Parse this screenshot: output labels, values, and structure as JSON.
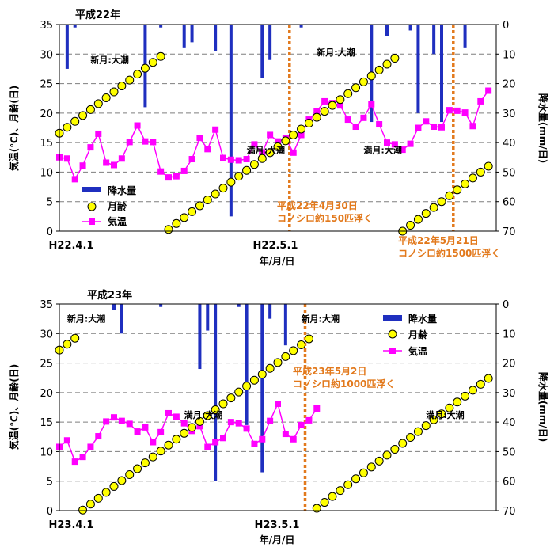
{
  "charts": [
    {
      "title": "平成22年",
      "x_start_label": "H22.4.1",
      "x_mid_label": "H22.5.1",
      "xlabel": "年/月/日",
      "ylabel_left": "気温(℃)、月齢(日)",
      "ylabel_right": "降水量(mm/日)",
      "legend": {
        "rain": "降水量",
        "moon": "月齢",
        "temp": "気温"
      },
      "annotations": [
        {
          "text": "新月:大潮",
          "day": 4,
          "value": 28.5
        },
        {
          "text": "新月:大潮",
          "day": 33,
          "value": 29.8
        },
        {
          "text": "満月:大潮",
          "day": 24,
          "value": 13.2
        },
        {
          "text": "満月:大潮",
          "day": 39,
          "value": 13.2
        }
      ],
      "events": [
        {
          "label1": "平成22年4月30日",
          "label2": "コノシロ約150匹浮く"
        },
        {
          "label1": "平成22年5月21日",
          "label2": "コノシロ約1500匹浮く"
        }
      ]
    },
    {
      "title": "平成23年",
      "x_start_label": "H23.4.1",
      "x_mid_label": "H23.5.1",
      "xlabel": "年/月/日",
      "ylabel_left": "気温(℃)、月齢(日)",
      "ylabel_right": "降水量(mm/日)",
      "legend": {
        "rain": "降水量",
        "moon": "月齢",
        "temp": "気温"
      },
      "annotations": [
        {
          "text": "新月:大潮",
          "day": 1,
          "value": 32.0
        },
        {
          "text": "新月:大潮",
          "day": 31,
          "value": 32.0
        },
        {
          "text": "満月:大潮",
          "day": 16,
          "value": 15.7
        },
        {
          "text": "満月:大潮",
          "day": 47,
          "value": 15.7
        }
      ],
      "events": [
        {
          "label1": "平成23年5月2日",
          "label2": "コノシロ約1000匹浮く"
        }
      ]
    }
  ],
  "chart_data": [
    {
      "type": "line",
      "title": "平成22年",
      "x_unit": "day",
      "x_start": "2010-04-01",
      "xlim": [
        0,
        56
      ],
      "ylim_left": [
        0,
        35
      ],
      "ylim_right": [
        0,
        70
      ],
      "yticks_left": [
        0,
        5,
        10,
        15,
        20,
        25,
        30,
        35
      ],
      "yticks_right": [
        0,
        10,
        20,
        30,
        40,
        50,
        60,
        70
      ],
      "grid": true,
      "legend_position": "bottom-left",
      "series": [
        {
          "name": "気温",
          "kind": "line",
          "axis": "left",
          "color": "#ff00ff",
          "x": [
            0,
            1,
            2,
            3,
            4,
            5,
            6,
            7,
            8,
            9,
            10,
            11,
            12,
            13,
            14,
            15,
            16,
            17,
            18,
            19,
            20,
            21,
            22,
            23,
            24,
            25,
            26,
            27,
            28,
            29,
            30,
            31,
            32,
            33,
            34,
            35,
            36,
            37,
            38,
            39,
            40,
            41,
            42,
            43,
            44,
            45,
            46,
            47,
            48,
            49,
            50,
            51,
            52,
            53,
            54,
            55
          ],
          "values": [
            12.5,
            12.3,
            8.8,
            11.1,
            14.2,
            16.5,
            11.6,
            11.2,
            12.3,
            15.1,
            17.9,
            15.2,
            15.1,
            10.1,
            9.1,
            9.3,
            10.2,
            12.2,
            15.8,
            13.9,
            17.2,
            12.4,
            12.1,
            12.0,
            12.2,
            14.7,
            13.3,
            16.3,
            15.2,
            15.7,
            13.3,
            16.3,
            18.9,
            20.3,
            22.0,
            21.7,
            21.3,
            18.9,
            17.7,
            19.2,
            21.5,
            18.1,
            15.0,
            14.7,
            13.8,
            14.8,
            17.5,
            18.6,
            17.7,
            17.6,
            20.5,
            20.4,
            20.1,
            17.8,
            22.0,
            23.8
          ]
        },
        {
          "name": "月齢",
          "kind": "scatter",
          "axis": "left",
          "color": "#ffff00",
          "x": [
            0,
            1,
            2,
            3,
            4,
            5,
            6,
            7,
            8,
            9,
            10,
            11,
            12,
            13,
            14,
            15,
            16,
            17,
            18,
            19,
            20,
            21,
            22,
            23,
            24,
            25,
            26,
            27,
            28,
            29,
            30,
            31,
            32,
            33,
            34,
            35,
            36,
            37,
            38,
            39,
            40,
            41,
            42,
            43,
            44,
            45,
            46,
            47,
            48,
            49,
            50,
            51,
            52,
            53,
            54,
            55
          ],
          "values": [
            16.6,
            17.6,
            18.6,
            19.6,
            20.6,
            21.6,
            22.6,
            23.6,
            24.6,
            25.6,
            26.6,
            27.6,
            28.6,
            29.6,
            0.3,
            1.3,
            2.3,
            3.3,
            4.3,
            5.3,
            6.3,
            7.3,
            8.3,
            9.3,
            10.3,
            11.3,
            12.3,
            13.3,
            14.3,
            15.3,
            16.3,
            17.3,
            18.3,
            19.3,
            20.3,
            21.3,
            22.3,
            23.3,
            24.3,
            25.3,
            26.3,
            27.3,
            28.3,
            29.3,
            0.0,
            1.0,
            2.0,
            3.0,
            4.0,
            5.0,
            6.0,
            7.0,
            8.0,
            9.0,
            10.0,
            11.0
          ]
        },
        {
          "name": "降水量",
          "kind": "bar",
          "axis": "right",
          "color": "#1f2fbf",
          "x": [
            1,
            2,
            11,
            13,
            16,
            17,
            20,
            22,
            26,
            27,
            31,
            40,
            42,
            45,
            46,
            48,
            49,
            52
          ],
          "values": [
            15,
            1,
            28,
            1,
            8,
            6,
            9,
            65,
            18,
            12,
            1,
            33,
            4,
            2,
            30,
            10,
            33,
            8
          ]
        }
      ],
      "event_days": [
        29.5,
        50.5
      ]
    },
    {
      "type": "line",
      "title": "平成23年",
      "x_unit": "day",
      "x_start": "2011-04-01",
      "xlim": [
        0,
        56
      ],
      "ylim_left": [
        0,
        35
      ],
      "ylim_right": [
        0,
        70
      ],
      "yticks_left": [
        0,
        5,
        10,
        15,
        20,
        25,
        30,
        35
      ],
      "yticks_right": [
        0,
        10,
        20,
        30,
        40,
        50,
        60,
        70
      ],
      "grid": true,
      "legend_position": "top-right",
      "series": [
        {
          "name": "気温",
          "kind": "line",
          "axis": "left",
          "color": "#ff00ff",
          "x": [
            0,
            1,
            2,
            3,
            4,
            5,
            6,
            7,
            8,
            9,
            10,
            11,
            12,
            13,
            14,
            15,
            16,
            17,
            18,
            19,
            20,
            21,
            22,
            23,
            24,
            25,
            26,
            27,
            28,
            29,
            30,
            31,
            32,
            33
          ],
          "values": [
            10.8,
            11.9,
            8.3,
            9.1,
            10.8,
            12.6,
            15.1,
            15.8,
            15.2,
            14.7,
            13.4,
            14.1,
            11.6,
            13.3,
            16.5,
            15.9,
            14.8,
            13.5,
            14.3,
            10.8,
            11.6,
            12.3,
            15.0,
            14.8,
            13.9,
            11.3,
            12.1,
            15.2,
            18.1,
            13.0,
            12.1,
            14.5,
            15.3,
            17.3
          ]
        },
        {
          "name": "月齢",
          "kind": "scatter",
          "axis": "left",
          "color": "#ffff00",
          "x": [
            0,
            1,
            2,
            3,
            4,
            5,
            6,
            7,
            8,
            9,
            10,
            11,
            12,
            13,
            14,
            15,
            16,
            17,
            18,
            19,
            20,
            21,
            22,
            23,
            24,
            25,
            26,
            27,
            28,
            29,
            30,
            31,
            32,
            33,
            34,
            35,
            36,
            37,
            38,
            39,
            40,
            41,
            42,
            43,
            44,
            45,
            46,
            47,
            48,
            49,
            50,
            51,
            52,
            53,
            54,
            55
          ],
          "values": [
            27.2,
            28.2,
            29.2,
            0.1,
            1.1,
            2.1,
            3.1,
            4.1,
            5.1,
            6.1,
            7.1,
            8.1,
            9.1,
            10.1,
            11.1,
            12.1,
            13.1,
            14.1,
            15.1,
            16.1,
            17.1,
            18.1,
            19.1,
            20.1,
            21.1,
            22.1,
            23.1,
            24.1,
            25.1,
            26.1,
            27.1,
            28.1,
            29.1,
            0.4,
            1.4,
            2.4,
            3.4,
            4.4,
            5.4,
            6.4,
            7.4,
            8.4,
            9.4,
            10.4,
            11.4,
            12.4,
            13.4,
            14.4,
            15.4,
            16.4,
            17.4,
            18.4,
            19.4,
            20.4,
            21.4,
            22.4
          ]
        },
        {
          "name": "降水量",
          "kind": "bar",
          "axis": "right",
          "color": "#1f2fbf",
          "x": [
            7,
            8,
            13,
            18,
            19,
            20,
            23,
            24,
            26,
            27,
            29
          ],
          "values": [
            2,
            10,
            1,
            22,
            9,
            60,
            1,
            41,
            57,
            5,
            14
          ]
        }
      ],
      "event_days": [
        31.5
      ]
    }
  ]
}
